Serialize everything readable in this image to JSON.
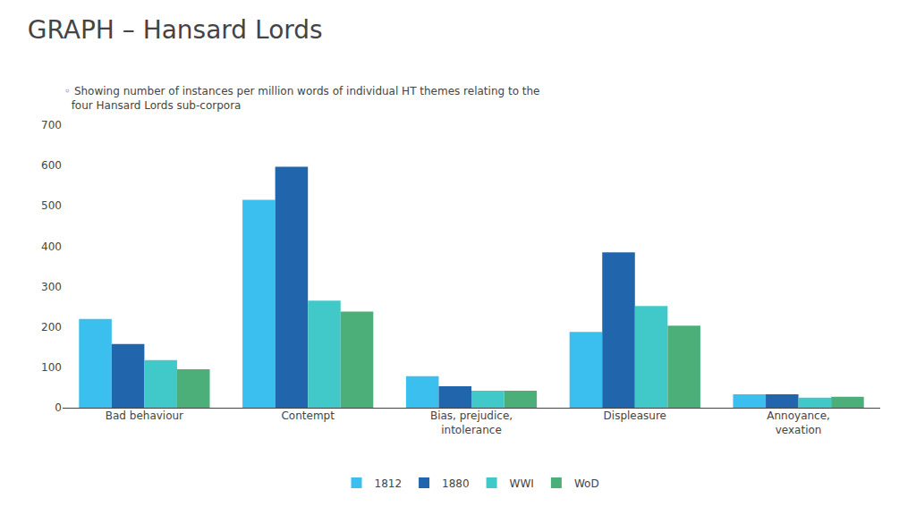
{
  "chart_data": {
    "type": "bar",
    "title": "GRAPH – Hansard Lords",
    "subtitle": "◦ Showing number of instances per million words of individual HT themes relating to the\n  four Hansard Lords sub-corpora",
    "categories": [
      "Bad behaviour",
      "Contempt",
      "Bias, prejudice,\nintolerance",
      "Displeasure",
      "Annoyance,\nvexation"
    ],
    "series": [
      {
        "name": "1812",
        "color": "#3BBFEF",
        "values": [
          220,
          515,
          78,
          188,
          33
        ]
      },
      {
        "name": "1880",
        "color": "#2166AC",
        "values": [
          158,
          597,
          53,
          385,
          33
        ]
      },
      {
        "name": "WWI",
        "color": "#41C9C9",
        "values": [
          118,
          265,
          42,
          252,
          25
        ]
      },
      {
        "name": "WoD",
        "color": "#4CAF7A",
        "values": [
          95,
          238,
          42,
          203,
          27
        ]
      }
    ],
    "ylim": [
      0,
      700
    ],
    "yticks": [
      0,
      100,
      200,
      300,
      400,
      500,
      600,
      700
    ],
    "grid": false,
    "legend": "bottom"
  }
}
